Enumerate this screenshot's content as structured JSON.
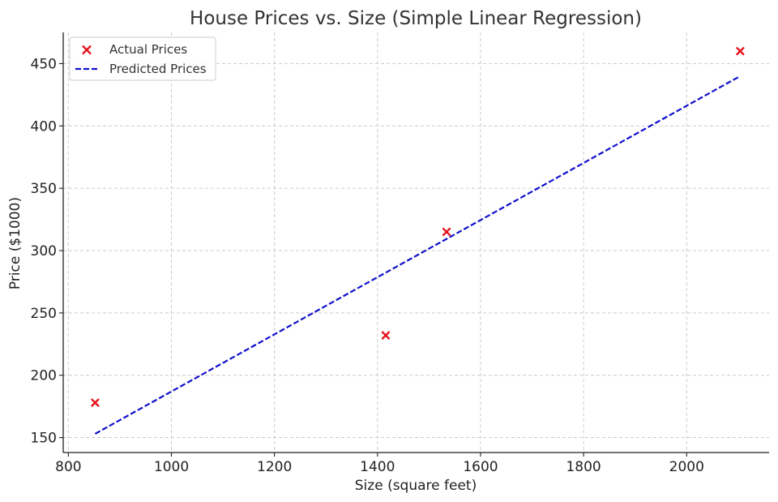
{
  "chart_data": {
    "type": "scatter",
    "title": "House Prices vs. Size (Simple Linear Regression)",
    "xlabel": "Size (square feet)",
    "ylabel": "Price ($1000)",
    "xlim": [
      790,
      2160
    ],
    "ylim": [
      138,
      475
    ],
    "xticks": [
      800,
      1000,
      1200,
      1400,
      1600,
      1800,
      2000
    ],
    "yticks": [
      150,
      200,
      250,
      300,
      350,
      400,
      450
    ],
    "grid": true,
    "legend_position": "top-left",
    "series": [
      {
        "name": "Actual Prices",
        "kind": "scatter",
        "marker": "x",
        "color": "#e8121b",
        "points": [
          {
            "x": 852,
            "y": 178
          },
          {
            "x": 1416,
            "y": 232
          },
          {
            "x": 1534,
            "y": 315
          },
          {
            "x": 2104,
            "y": 460
          }
        ]
      },
      {
        "name": "Predicted Prices",
        "kind": "line",
        "line_style": "dashed",
        "color": "#1010cc",
        "points": [
          {
            "x": 852,
            "y": 153
          },
          {
            "x": 2104,
            "y": 440
          }
        ]
      }
    ]
  }
}
